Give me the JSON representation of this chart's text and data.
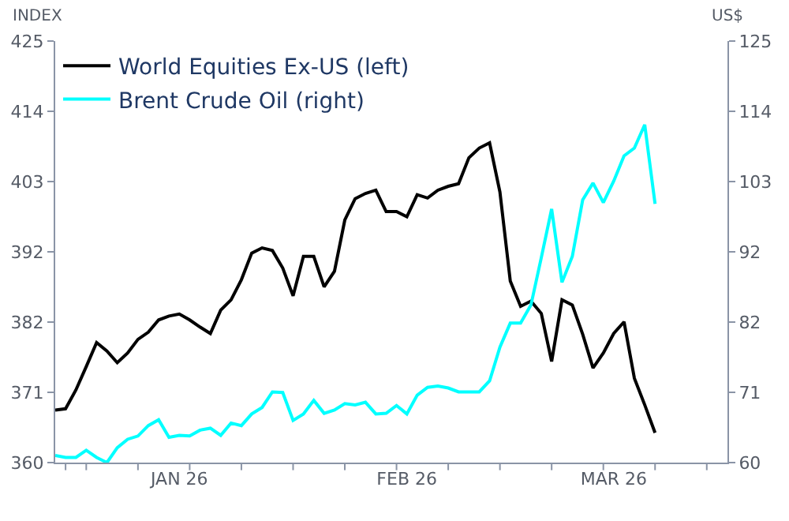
{
  "chart_data": {
    "type": "line",
    "ylabel": "INDEX",
    "y2label": "US$",
    "categories": [
      null,
      null,
      null,
      null,
      null,
      null,
      null,
      null,
      null,
      null,
      null,
      null,
      "JAN 26",
      null,
      null,
      null,
      null,
      null,
      null,
      null,
      null,
      null,
      null,
      null,
      null,
      null,
      null,
      null,
      null,
      null,
      null,
      null,
      null,
      null,
      "FEB 26",
      null,
      null,
      null,
      null,
      null,
      null,
      null,
      null,
      null,
      null,
      null,
      null,
      null,
      null,
      null,
      null,
      null,
      null,
      null,
      "MAR 26",
      null,
      null,
      null,
      null,
      null,
      null,
      null,
      null,
      null,
      null,
      null
    ],
    "ylim": [
      360,
      425
    ],
    "yticks": [
      360,
      {
        "value": 370.83,
        "label": "371"
      },
      {
        "value": 381.67,
        "label": "382"
      },
      {
        "value": 392.5,
        "label": "392"
      },
      {
        "value": 403.33,
        "label": "403"
      },
      {
        "value": 414.17,
        "label": "414"
      },
      425
    ],
    "y2lim": [
      60,
      125
    ],
    "y2ticks": [
      60,
      {
        "value": 70.83,
        "label": "71"
      },
      {
        "value": 81.67,
        "label": "82"
      },
      {
        "value": 92.5,
        "label": "92"
      },
      {
        "value": 103.33,
        "label": "103"
      },
      {
        "value": 114.17,
        "label": "114"
      },
      125
    ],
    "legend": "top left",
    "marker": "none",
    "line_style": "solid",
    "series": [
      {
        "name": "World Equities Ex-US (left)",
        "color": "#000000",
        "values": [
          368.1,
          368.3,
          371.2,
          374.8,
          378.5,
          377.2,
          375.4,
          376.9,
          379.0,
          380.1,
          382.0,
          382.6,
          382.9,
          382.0,
          380.9,
          379.9,
          383.5,
          385.1,
          388.2,
          392.3,
          393.1,
          392.7,
          390.0,
          385.7,
          391.8,
          391.8,
          387.1,
          389.5,
          397.4,
          400.7,
          401.5,
          402.0,
          398.7,
          398.7,
          397.9,
          401.3,
          400.8,
          402.0,
          402.6,
          403.0,
          407.0,
          408.5,
          409.3,
          401.7,
          388.0,
          384.1,
          384.9,
          383.0,
          375.6,
          385.1,
          384.3,
          379.8,
          374.6,
          376.9,
          379.9,
          381.7,
          373.0,
          368.9,
          364.6,
          null,
          null,
          null,
          null,
          null,
          null,
          null
        ]
      },
      {
        "name": "Brent Crude Oil (right)",
        "color": "#00ffff",
        "axis": "y2",
        "values": [
          61.1,
          60.8,
          60.8,
          61.9,
          60.8,
          60.0,
          62.3,
          63.6,
          64.1,
          65.7,
          66.6,
          63.9,
          64.2,
          64.1,
          65.0,
          65.3,
          64.2,
          66.1,
          65.7,
          67.5,
          68.5,
          70.9,
          70.8,
          66.5,
          67.5,
          69.6,
          67.6,
          68.1,
          69.1,
          68.9,
          69.3,
          67.5,
          67.6,
          68.8,
          67.5,
          70.4,
          71.6,
          71.8,
          71.5,
          70.9,
          70.9,
          70.9,
          72.6,
          77.8,
          81.5,
          81.5,
          84.3,
          91.6,
          99.1,
          87.8,
          91.8,
          100.5,
          103.1,
          100.1,
          103.4,
          107.3,
          108.5,
          112.1,
          99.9,
          null,
          null,
          null,
          null,
          null,
          null,
          null
        ]
      }
    ]
  }
}
